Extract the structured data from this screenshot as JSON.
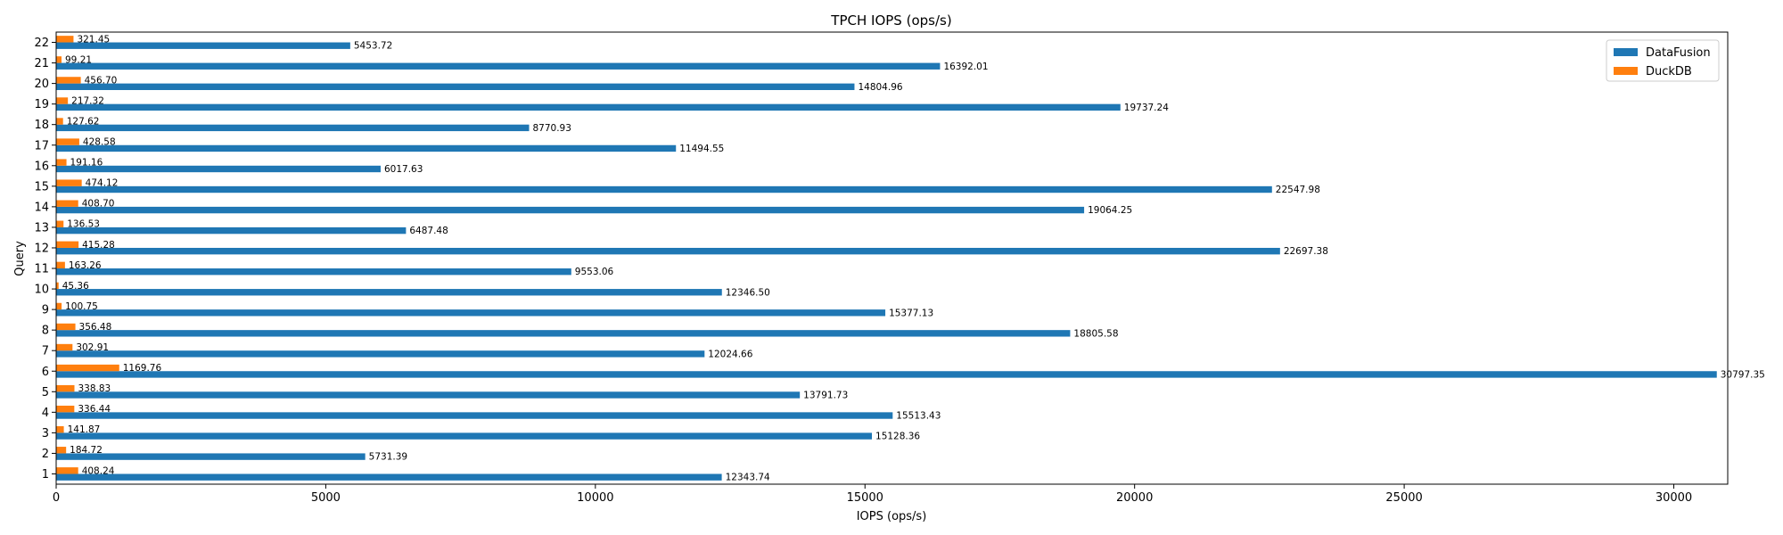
{
  "chart_data": {
    "type": "bar",
    "orientation": "horizontal",
    "title": "TPCH IOPS (ops/s)",
    "xlabel": "IOPS (ops/s)",
    "ylabel": "Query",
    "categories": [
      "1",
      "2",
      "3",
      "4",
      "5",
      "6",
      "7",
      "8",
      "9",
      "10",
      "11",
      "12",
      "13",
      "14",
      "15",
      "16",
      "17",
      "18",
      "19",
      "20",
      "21",
      "22"
    ],
    "xlim": [
      0,
      31000
    ],
    "xticks": [
      0,
      5000,
      10000,
      15000,
      20000,
      25000,
      30000
    ],
    "grid": false,
    "legend_position": "top-right",
    "series": [
      {
        "name": "DataFusion",
        "color": "#1f77b4",
        "values": [
          12343.74,
          5731.39,
          15128.36,
          15513.43,
          13791.73,
          30797.35,
          12024.66,
          18805.58,
          15377.13,
          12346.5,
          9553.06,
          22697.38,
          6487.48,
          19064.25,
          22547.98,
          6017.63,
          11494.55,
          8770.93,
          19737.24,
          14804.96,
          16392.01,
          5453.72
        ],
        "labels": [
          "12343.74",
          "5731.39",
          "15128.36",
          "15513.43",
          "13791.73",
          "30797.35",
          "12024.66",
          "18805.58",
          "15377.13",
          "12346.50",
          "9553.06",
          "22697.38",
          "6487.48",
          "19064.25",
          "22547.98",
          "6017.63",
          "11494.55",
          "8770.93",
          "19737.24",
          "14804.96",
          "16392.01",
          "5453.72"
        ]
      },
      {
        "name": "DuckDB",
        "color": "#ff7f0e",
        "values": [
          408.24,
          184.72,
          141.87,
          336.44,
          338.83,
          1169.76,
          302.91,
          356.48,
          100.75,
          45.36,
          163.26,
          415.28,
          136.53,
          408.7,
          474.12,
          191.16,
          428.58,
          127.62,
          217.32,
          456.7,
          99.21,
          321.45
        ],
        "labels": [
          "408.24",
          "184.72",
          "141.87",
          "336.44",
          "338.83",
          "1169.76",
          "302.91",
          "356.48",
          "100.75",
          "45.36",
          "163.26",
          "415.28",
          "136.53",
          "408.70",
          "474.12",
          "191.16",
          "428.58",
          "127.62",
          "217.32",
          "456.70",
          "99.21",
          "321.45"
        ]
      }
    ]
  }
}
